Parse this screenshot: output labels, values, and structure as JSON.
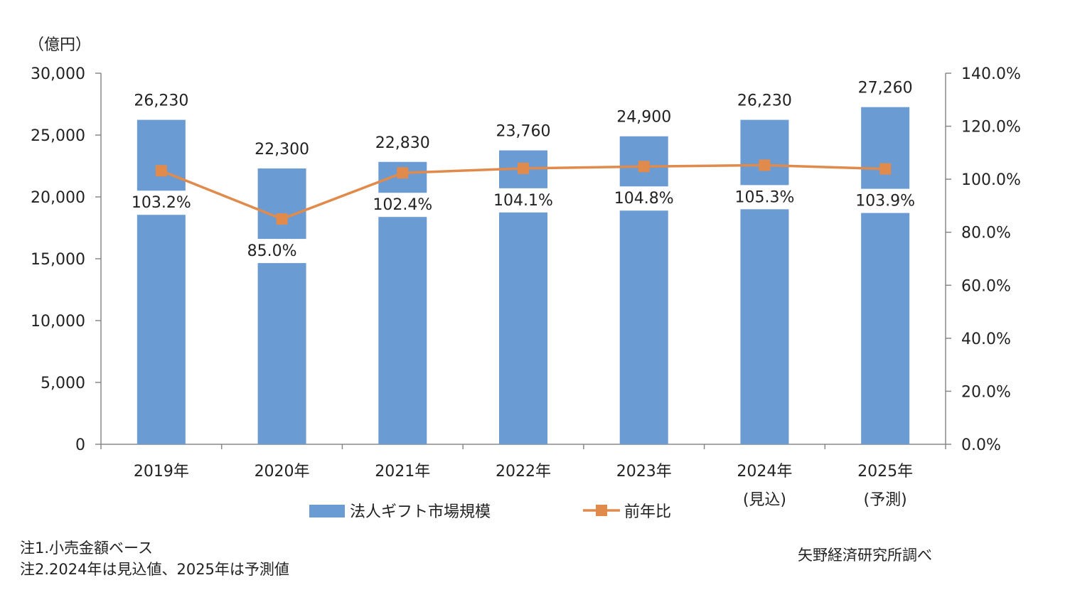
{
  "chart_data": {
    "type": "bar",
    "categories": [
      "2019年",
      "2020年",
      "2021年",
      "2022年",
      "2023年",
      "2024年",
      "2025年"
    ],
    "category_sublabels": [
      "",
      "",
      "",
      "",
      "",
      "(見込)",
      "(予測)"
    ],
    "series": [
      {
        "name": "法人ギフト市場規模",
        "type": "bar",
        "axis": "left",
        "color": "#6b9bd3",
        "values": [
          26230,
          22300,
          22830,
          23760,
          24900,
          26230,
          27260
        ],
        "labels": [
          "26,230",
          "22,300",
          "22,830",
          "23,760",
          "24,900",
          "26,230",
          "27,260"
        ]
      },
      {
        "name": "前年比",
        "type": "line",
        "axis": "right",
        "color": "#e08a4c",
        "values": [
          103.2,
          85.0,
          102.4,
          104.1,
          104.8,
          105.3,
          103.9
        ],
        "labels": [
          "103.2%",
          "85.0%",
          "102.4%",
          "104.1%",
          "104.8%",
          "105.3%",
          "103.9%"
        ]
      }
    ],
    "y_unit": "（億円）",
    "ylim": [
      0,
      30000
    ],
    "y_ticks": [
      "0",
      "5,000",
      "10,000",
      "15,000",
      "20,000",
      "25,000",
      "30,000"
    ],
    "y2lim": [
      0,
      140
    ],
    "y2_ticks": [
      "0.0%",
      "20.0%",
      "40.0%",
      "60.0%",
      "80.0%",
      "100.0%",
      "120.0%",
      "140.0%"
    ],
    "grid": false,
    "legend_placement": "bottom"
  },
  "notes": [
    "注1.小売金額ベース",
    "注2.2024年は見込値、2025年は予測値"
  ],
  "source": "矢野経済研究所調べ"
}
